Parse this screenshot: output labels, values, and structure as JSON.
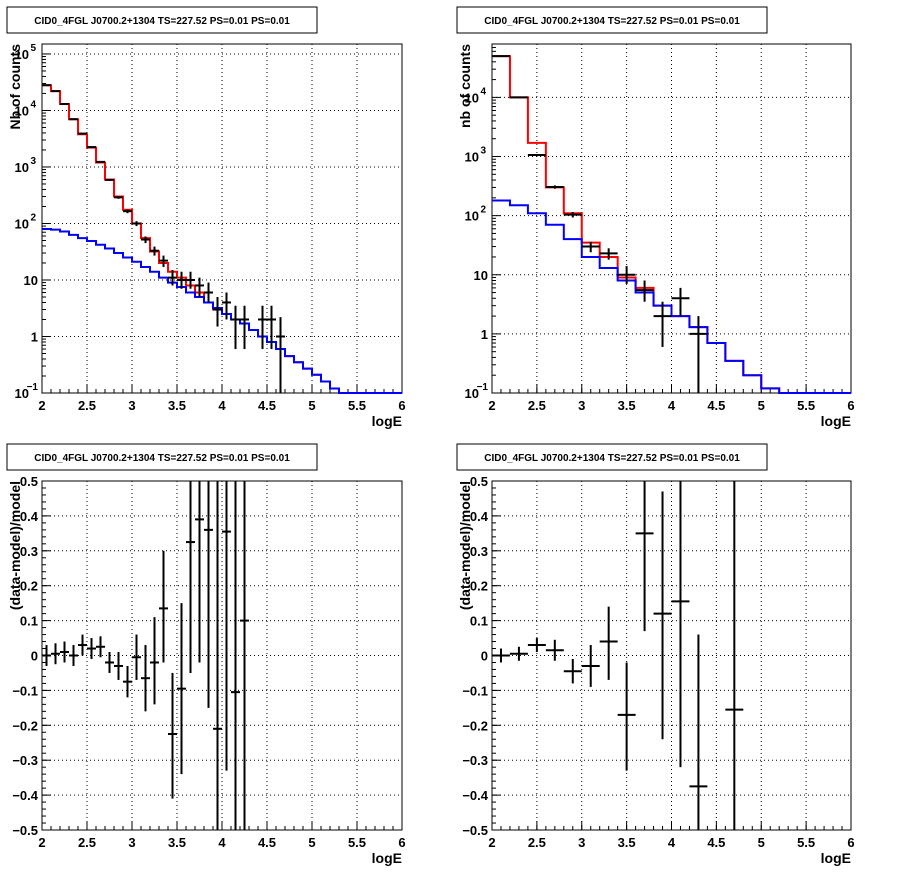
{
  "chart_data": [
    {
      "type": "line",
      "title": "CID0_4FGL J0700.2+1304 TS=227.52 PS=0.01 PS=0.01",
      "xlabel": "logE",
      "ylabel": "Nb of counts",
      "xlim": [
        2,
        6
      ],
      "ylim": [
        0.1,
        150000
      ],
      "yscale": "log",
      "grid": true,
      "xticks": [
        "2",
        "2.5",
        "3",
        "3.5",
        "4",
        "4.5",
        "5",
        "5.5",
        "6"
      ],
      "yticks": [
        {
          "value": 0.1,
          "base": "10",
          "exp": "−1"
        },
        {
          "value": 1,
          "base": "1",
          "exp": ""
        },
        {
          "value": 10,
          "base": "10",
          "exp": ""
        },
        {
          "value": 100,
          "base": "10",
          "exp": "2"
        },
        {
          "value": 1000,
          "base": "10",
          "exp": "3"
        },
        {
          "value": 10000,
          "base": "10",
          "exp": "4"
        },
        {
          "value": 100000,
          "base": "10",
          "exp": "5"
        }
      ],
      "series": [
        {
          "role": "model-total",
          "color": "#ff0000",
          "bin_width": 0.1,
          "x_start": 2.0,
          "values": [
            28000,
            22000,
            13000,
            7000,
            3800,
            2200,
            1200,
            600,
            300,
            175,
            100,
            55,
            32,
            20,
            14,
            11,
            8,
            6,
            4,
            3,
            2.5,
            2,
            1.7,
            1.3,
            1.0,
            0.8,
            0.6,
            0.45,
            0.35,
            0.27,
            0.21,
            0.16,
            0.12,
            0.1,
            0.1,
            0.1,
            0.1,
            0.1,
            0.1,
            0.1
          ]
        },
        {
          "role": "background",
          "color": "#0000ff",
          "bin_width": 0.1,
          "x_start": 2.0,
          "values": [
            80,
            78,
            72,
            63,
            55,
            49,
            42,
            36,
            30,
            25,
            21,
            17,
            14,
            11,
            9,
            7.5,
            6,
            5,
            4,
            3.2,
            2.5,
            2,
            1.7,
            1.3,
            1.0,
            0.8,
            0.6,
            0.45,
            0.35,
            0.27,
            0.21,
            0.16,
            0.12,
            0.1,
            0.1,
            0.1,
            0.1,
            0.1,
            0.1,
            0.1
          ]
        },
        {
          "role": "data",
          "color": "#000000",
          "points": [
            {
              "x": 2.05,
              "xerr": 0.05,
              "y": 28000,
              "ylo": 27800,
              "yhi": 28200
            },
            {
              "x": 2.15,
              "xerr": 0.05,
              "y": 22000,
              "ylo": 21800,
              "yhi": 22200
            },
            {
              "x": 2.25,
              "xerr": 0.05,
              "y": 13000,
              "ylo": 12880,
              "yhi": 13120
            },
            {
              "x": 2.35,
              "xerr": 0.05,
              "y": 7000,
              "ylo": 6920,
              "yhi": 7080
            },
            {
              "x": 2.45,
              "xerr": 0.05,
              "y": 3900,
              "ylo": 3840,
              "yhi": 3960
            },
            {
              "x": 2.55,
              "xerr": 0.05,
              "y": 2250,
              "ylo": 2200,
              "yhi": 2300
            },
            {
              "x": 2.65,
              "xerr": 0.05,
              "y": 1230,
              "ylo": 1195,
              "yhi": 1265
            },
            {
              "x": 2.75,
              "xerr": 0.05,
              "y": 590,
              "ylo": 566,
              "yhi": 614
            },
            {
              "x": 2.85,
              "xerr": 0.05,
              "y": 290,
              "ylo": 273,
              "yhi": 307
            },
            {
              "x": 2.95,
              "xerr": 0.05,
              "y": 165,
              "ylo": 152,
              "yhi": 178
            },
            {
              "x": 3.05,
              "xerr": 0.05,
              "y": 100,
              "ylo": 90,
              "yhi": 110
            },
            {
              "x": 3.15,
              "xerr": 0.05,
              "y": 52,
              "ylo": 45,
              "yhi": 59
            },
            {
              "x": 3.25,
              "xerr": 0.05,
              "y": 33,
              "ylo": 27,
              "yhi": 39
            },
            {
              "x": 3.35,
              "xerr": 0.05,
              "y": 22,
              "ylo": 17,
              "yhi": 27
            },
            {
              "x": 3.45,
              "xerr": 0.05,
              "y": 11,
              "ylo": 8,
              "yhi": 15
            },
            {
              "x": 3.55,
              "xerr": 0.05,
              "y": 10,
              "ylo": 7,
              "yhi": 14
            },
            {
              "x": 3.65,
              "xerr": 0.05,
              "y": 10,
              "ylo": 7,
              "yhi": 14
            },
            {
              "x": 3.75,
              "xerr": 0.05,
              "y": 8,
              "ylo": 5,
              "yhi": 11
            },
            {
              "x": 3.85,
              "xerr": 0.05,
              "y": 6,
              "ylo": 4,
              "yhi": 9
            },
            {
              "x": 3.95,
              "xerr": 0.05,
              "y": 3,
              "ylo": 1.5,
              "yhi": 5
            },
            {
              "x": 4.05,
              "xerr": 0.05,
              "y": 4,
              "ylo": 2,
              "yhi": 6
            },
            {
              "x": 4.15,
              "xerr": 0.05,
              "y": 2,
              "ylo": 0.6,
              "yhi": 3.5
            },
            {
              "x": 4.25,
              "xerr": 0.05,
              "y": 2,
              "ylo": 0.6,
              "yhi": 3.5
            },
            {
              "x": 4.45,
              "xerr": 0.05,
              "y": 2,
              "ylo": 0.6,
              "yhi": 3.5
            },
            {
              "x": 4.55,
              "xerr": 0.05,
              "y": 2,
              "ylo": 0.6,
              "yhi": 3.5
            },
            {
              "x": 4.65,
              "xerr": 0.05,
              "y": 1,
              "ylo": 0.1,
              "yhi": 2.2
            }
          ]
        }
      ]
    },
    {
      "type": "line",
      "title": "CID0_4FGL J0700.2+1304 TS=227.52 PS=0.01 PS=0.01",
      "xlabel": "logE",
      "ylabel": "nb of counts",
      "xlim": [
        2,
        6
      ],
      "ylim": [
        0.1,
        80000
      ],
      "yscale": "log",
      "grid": true,
      "xticks": [
        "2",
        "2.5",
        "3",
        "3.5",
        "4",
        "4.5",
        "5",
        "5.5",
        "6"
      ],
      "yticks": [
        {
          "value": 0.1,
          "base": "10",
          "exp": "−1"
        },
        {
          "value": 1,
          "base": "1",
          "exp": ""
        },
        {
          "value": 10,
          "base": "10",
          "exp": ""
        },
        {
          "value": 100,
          "base": "10",
          "exp": "2"
        },
        {
          "value": 1000,
          "base": "10",
          "exp": "3"
        },
        {
          "value": 10000,
          "base": "10",
          "exp": "4"
        }
      ],
      "series": [
        {
          "role": "model-total",
          "color": "#ff0000",
          "bin_width": 0.2,
          "x_start": 2.0,
          "values": [
            50000,
            10000,
            1700,
            300,
            110,
            35,
            20,
            9,
            6,
            3,
            2,
            1.3,
            0.7,
            0.35,
            0.2,
            0.12,
            0.1,
            0.1,
            0.1,
            0.1
          ]
        },
        {
          "role": "background",
          "color": "#0000ff",
          "bin_width": 0.2,
          "x_start": 2.0,
          "values": [
            180,
            150,
            110,
            70,
            40,
            20,
            13,
            8,
            5,
            3,
            2,
            1.3,
            0.7,
            0.35,
            0.2,
            0.12,
            0.1,
            0.1,
            0.1,
            0.1
          ]
        },
        {
          "role": "data",
          "color": "#000000",
          "points": [
            {
              "x": 2.1,
              "xerr": 0.1,
              "y": 50000,
              "ylo": 49700,
              "yhi": 50300
            },
            {
              "x": 2.3,
              "xerr": 0.1,
              "y": 10000,
              "ylo": 9850,
              "yhi": 10150
            },
            {
              "x": 2.5,
              "xerr": 0.1,
              "y": 1060,
              "ylo": 1020,
              "yhi": 1100
            },
            {
              "x": 2.7,
              "xerr": 0.1,
              "y": 305,
              "ylo": 285,
              "yhi": 325
            },
            {
              "x": 2.9,
              "xerr": 0.1,
              "y": 104,
              "ylo": 93,
              "yhi": 115
            },
            {
              "x": 3.1,
              "xerr": 0.1,
              "y": 30,
              "ylo": 24,
              "yhi": 36
            },
            {
              "x": 3.3,
              "xerr": 0.1,
              "y": 23,
              "ylo": 18,
              "yhi": 28
            },
            {
              "x": 3.5,
              "xerr": 0.1,
              "y": 10,
              "ylo": 7,
              "yhi": 14
            },
            {
              "x": 3.7,
              "xerr": 0.1,
              "y": 5.5,
              "ylo": 3.5,
              "yhi": 8
            },
            {
              "x": 3.9,
              "xerr": 0.1,
              "y": 2,
              "ylo": 0.6,
              "yhi": 3.5
            },
            {
              "x": 4.1,
              "xerr": 0.1,
              "y": 4,
              "ylo": 2,
              "yhi": 6
            },
            {
              "x": 4.3,
              "xerr": 0.1,
              "y": 1,
              "ylo": 0.1,
              "yhi": 2
            }
          ]
        }
      ]
    },
    {
      "type": "scatter",
      "title": "CID0_4FGL J0700.2+1304 TS=227.52 PS=0.01 PS=0.01",
      "xlabel": "logE",
      "ylabel": "(data-model)/model",
      "xlim": [
        2,
        6
      ],
      "ylim": [
        -0.5,
        0.5
      ],
      "grid": true,
      "xticks": [
        "2",
        "2.5",
        "3",
        "3.5",
        "4",
        "4.5",
        "5",
        "5.5",
        "6"
      ],
      "yticks": [
        "−0.5",
        "−0.4",
        "−0.3",
        "−0.2",
        "−0.1",
        "0",
        "0.1",
        "0.2",
        "0.3",
        "0.4",
        "0.5"
      ],
      "points": [
        {
          "x": 2.05,
          "xerr": 0.05,
          "y": 0.0,
          "ylo": -0.03,
          "yhi": 0.03
        },
        {
          "x": 2.15,
          "xerr": 0.05,
          "y": 0.005,
          "ylo": -0.025,
          "yhi": 0.035
        },
        {
          "x": 2.25,
          "xerr": 0.05,
          "y": 0.01,
          "ylo": -0.02,
          "yhi": 0.04
        },
        {
          "x": 2.35,
          "xerr": 0.05,
          "y": 0.0,
          "ylo": -0.03,
          "yhi": 0.03
        },
        {
          "x": 2.45,
          "xerr": 0.05,
          "y": 0.03,
          "ylo": 0.0,
          "yhi": 0.06
        },
        {
          "x": 2.55,
          "xerr": 0.05,
          "y": 0.02,
          "ylo": -0.01,
          "yhi": 0.05
        },
        {
          "x": 2.65,
          "xerr": 0.05,
          "y": 0.025,
          "ylo": -0.005,
          "yhi": 0.055
        },
        {
          "x": 2.75,
          "xerr": 0.05,
          "y": -0.02,
          "ylo": -0.05,
          "yhi": 0.01
        },
        {
          "x": 2.85,
          "xerr": 0.05,
          "y": -0.03,
          "ylo": -0.07,
          "yhi": 0.01
        },
        {
          "x": 2.95,
          "xerr": 0.05,
          "y": -0.075,
          "ylo": -0.12,
          "yhi": -0.03
        },
        {
          "x": 3.05,
          "xerr": 0.05,
          "y": -0.005,
          "ylo": -0.07,
          "yhi": 0.06
        },
        {
          "x": 3.15,
          "xerr": 0.05,
          "y": -0.065,
          "ylo": -0.16,
          "yhi": 0.03
        },
        {
          "x": 3.25,
          "xerr": 0.05,
          "y": -0.02,
          "ylo": -0.14,
          "yhi": 0.11
        },
        {
          "x": 3.35,
          "xerr": 0.05,
          "y": 0.135,
          "ylo": -0.02,
          "yhi": 0.3
        },
        {
          "x": 3.45,
          "xerr": 0.05,
          "y": -0.225,
          "ylo": -0.41,
          "yhi": -0.05
        },
        {
          "x": 3.55,
          "xerr": 0.05,
          "y": -0.095,
          "ylo": -0.34,
          "yhi": 0.15
        },
        {
          "x": 3.65,
          "xerr": 0.05,
          "y": 0.325,
          "ylo": -0.05,
          "yhi": 0.5
        },
        {
          "x": 3.75,
          "xerr": 0.05,
          "y": 0.39,
          "ylo": -0.02,
          "yhi": 0.5
        },
        {
          "x": 3.85,
          "xerr": 0.05,
          "y": 0.36,
          "ylo": -0.15,
          "yhi": 0.5
        },
        {
          "x": 3.95,
          "xerr": 0.05,
          "y": -0.21,
          "ylo": -0.5,
          "yhi": 0.5
        },
        {
          "x": 4.05,
          "xerr": 0.05,
          "y": 0.355,
          "ylo": -0.33,
          "yhi": 0.5
        },
        {
          "x": 4.15,
          "xerr": 0.05,
          "y": -0.105,
          "ylo": -0.5,
          "yhi": 0.5
        },
        {
          "x": 4.25,
          "xerr": 0.05,
          "y": 0.1,
          "ylo": -0.5,
          "yhi": 0.5
        }
      ]
    },
    {
      "type": "scatter",
      "title": "CID0_4FGL J0700.2+1304 TS=227.52 PS=0.01 PS=0.01",
      "xlabel": "logE",
      "ylabel": "(data-model)/model",
      "xlim": [
        2,
        6
      ],
      "ylim": [
        -0.5,
        0.5
      ],
      "grid": true,
      "xticks": [
        "2",
        "2.5",
        "3",
        "3.5",
        "4",
        "4.5",
        "5",
        "5.5",
        "6"
      ],
      "yticks": [
        "−0.5",
        "−0.4",
        "−0.3",
        "−0.2",
        "−0.1",
        "0",
        "0.1",
        "0.2",
        "0.3",
        "0.4",
        "0.5"
      ],
      "points": [
        {
          "x": 2.1,
          "xerr": 0.1,
          "y": 0.0,
          "ylo": -0.02,
          "yhi": 0.02
        },
        {
          "x": 2.3,
          "xerr": 0.1,
          "y": 0.005,
          "ylo": -0.015,
          "yhi": 0.025
        },
        {
          "x": 2.5,
          "xerr": 0.1,
          "y": 0.03,
          "ylo": 0.01,
          "yhi": 0.05
        },
        {
          "x": 2.7,
          "xerr": 0.1,
          "y": 0.015,
          "ylo": -0.015,
          "yhi": 0.045
        },
        {
          "x": 2.9,
          "xerr": 0.1,
          "y": -0.045,
          "ylo": -0.08,
          "yhi": -0.01
        },
        {
          "x": 3.1,
          "xerr": 0.1,
          "y": -0.03,
          "ylo": -0.09,
          "yhi": 0.03
        },
        {
          "x": 3.3,
          "xerr": 0.1,
          "y": 0.04,
          "ylo": -0.07,
          "yhi": 0.14
        },
        {
          "x": 3.5,
          "xerr": 0.1,
          "y": -0.17,
          "ylo": -0.33,
          "yhi": -0.02
        },
        {
          "x": 3.7,
          "xerr": 0.1,
          "y": 0.35,
          "ylo": 0.07,
          "yhi": 0.5
        },
        {
          "x": 3.9,
          "xerr": 0.1,
          "y": 0.12,
          "ylo": -0.24,
          "yhi": 0.47
        },
        {
          "x": 4.1,
          "xerr": 0.1,
          "y": 0.155,
          "ylo": -0.32,
          "yhi": 0.5
        },
        {
          "x": 4.3,
          "xerr": 0.1,
          "y": -0.375,
          "ylo": -0.5,
          "yhi": 0.06
        },
        {
          "x": 4.7,
          "xerr": 0.1,
          "y": -0.155,
          "ylo": -0.5,
          "yhi": 0.5
        }
      ]
    }
  ]
}
